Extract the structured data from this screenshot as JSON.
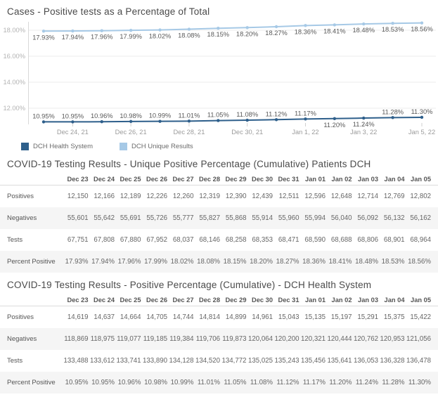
{
  "chart": {
    "title": "Cases - Positive tests as a Percentage of Total",
    "legend": [
      {
        "label": "DCH Health System",
        "color": "#2e5f8b"
      },
      {
        "label": "DCH Unique Results",
        "color": "#a6c9e6"
      }
    ]
  },
  "chart_data": {
    "type": "line",
    "title": "Cases - Positive tests as a Percentage of Total",
    "x": [
      "Dec 23",
      "Dec 24",
      "Dec 25",
      "Dec 26",
      "Dec 27",
      "Dec 28",
      "Dec 29",
      "Dec 30",
      "Dec 31",
      "Jan 01",
      "Jan 02",
      "Jan 03",
      "Jan 04",
      "Jan 05"
    ],
    "y_ticks": [
      "18.00%",
      "16.00%",
      "14.00%",
      "12.00%"
    ],
    "ylim": [
      10.8,
      18.8
    ],
    "grid": true,
    "legend_position": "bottom",
    "x_ticks": [
      "Dec 24, 21",
      "Dec 26, 21",
      "Dec 28, 21",
      "Dec 30, 21",
      "Jan 1, 22",
      "Jan 3, 22",
      "Jan 5, 22"
    ],
    "x_tick_indices": [
      1,
      3,
      5,
      7,
      9,
      11,
      13
    ],
    "series": [
      {
        "name": "DCH Unique Results",
        "color": "#a6c9e6",
        "values": [
          17.93,
          17.94,
          17.96,
          17.99,
          18.02,
          18.08,
          18.15,
          18.2,
          18.27,
          18.36,
          18.41,
          18.48,
          18.53,
          18.56
        ],
        "labels": [
          "17.93%",
          "17.94%",
          "17.96%",
          "17.99%",
          "18.02%",
          "18.08%",
          "18.15%",
          "18.20%",
          "18.27%",
          "18.36%",
          "18.41%",
          "18.48%",
          "18.53%",
          "18.56%"
        ],
        "label_side": "below",
        "label_below_indices": []
      },
      {
        "name": "DCH Health System",
        "color": "#2e5f8b",
        "values": [
          10.95,
          10.95,
          10.96,
          10.98,
          10.99,
          11.01,
          11.05,
          11.08,
          11.12,
          11.17,
          11.2,
          11.24,
          11.28,
          11.3
        ],
        "labels": [
          "10.95%",
          "10.95%",
          "10.96%",
          "10.98%",
          "10.99%",
          "11.01%",
          "11.05%",
          "11.08%",
          "11.12%",
          "11.17%",
          "11.20%",
          "11.24%",
          "11.28%",
          "11.30%"
        ],
        "label_side": "above",
        "label_below_indices": [
          10,
          11
        ]
      }
    ]
  },
  "tables": [
    {
      "title": "COVID-19 Testing Results - Unique Positive Percentage (Cumulative) Patients DCH",
      "columns": [
        "Dec 23",
        "Dec 24",
        "Dec 25",
        "Dec 26",
        "Dec 27",
        "Dec 28",
        "Dec 29",
        "Dec 30",
        "Dec 31",
        "Jan 01",
        "Jan 02",
        "Jan 03",
        "Jan 04",
        "Jan 05"
      ],
      "rows": [
        {
          "label": "Positives",
          "values": [
            "12,150",
            "12,166",
            "12,189",
            "12,226",
            "12,260",
            "12,319",
            "12,390",
            "12,439",
            "12,511",
            "12,596",
            "12,648",
            "12,714",
            "12,769",
            "12,802"
          ]
        },
        {
          "label": "Negatives",
          "values": [
            "55,601",
            "55,642",
            "55,691",
            "55,726",
            "55,777",
            "55,827",
            "55,868",
            "55,914",
            "55,960",
            "55,994",
            "56,040",
            "56,092",
            "56,132",
            "56,162"
          ]
        },
        {
          "label": "Tests",
          "values": [
            "67,751",
            "67,808",
            "67,880",
            "67,952",
            "68,037",
            "68,146",
            "68,258",
            "68,353",
            "68,471",
            "68,590",
            "68,688",
            "68,806",
            "68,901",
            "68,964"
          ]
        },
        {
          "label": "Percent Positive",
          "values": [
            "17.93%",
            "17.94%",
            "17.96%",
            "17.99%",
            "18.02%",
            "18.08%",
            "18.15%",
            "18.20%",
            "18.27%",
            "18.36%",
            "18.41%",
            "18.48%",
            "18.53%",
            "18.56%"
          ]
        }
      ]
    },
    {
      "title": "COVID-19 Testing Results - Positive Percentage (Cumulative) - DCH Health System",
      "columns": [
        "Dec 23",
        "Dec 24",
        "Dec 25",
        "Dec 26",
        "Dec 27",
        "Dec 28",
        "Dec 29",
        "Dec 30",
        "Dec 31",
        "Jan 01",
        "Jan 02",
        "Jan 03",
        "Jan 04",
        "Jan 05"
      ],
      "rows": [
        {
          "label": "Positives",
          "values": [
            "14,619",
            "14,637",
            "14,664",
            "14,705",
            "14,744",
            "14,814",
            "14,899",
            "14,961",
            "15,043",
            "15,135",
            "15,197",
            "15,291",
            "15,375",
            "15,422"
          ]
        },
        {
          "label": "Negatives",
          "values": [
            "118,869",
            "118,975",
            "119,077",
            "119,185",
            "119,384",
            "119,706",
            "119,873",
            "120,064",
            "120,200",
            "120,321",
            "120,444",
            "120,762",
            "120,953",
            "121,056"
          ]
        },
        {
          "label": "Tests",
          "values": [
            "133,488",
            "133,612",
            "133,741",
            "133,890",
            "134,128",
            "134,520",
            "134,772",
            "135,025",
            "135,243",
            "135,456",
            "135,641",
            "136,053",
            "136,328",
            "136,478"
          ]
        },
        {
          "label": "Percent Positive",
          "values": [
            "10.95%",
            "10.95%",
            "10.96%",
            "10.98%",
            "10.99%",
            "11.01%",
            "11.05%",
            "11.08%",
            "11.12%",
            "11.17%",
            "11.20%",
            "11.24%",
            "11.28%",
            "11.30%"
          ]
        }
      ]
    }
  ]
}
